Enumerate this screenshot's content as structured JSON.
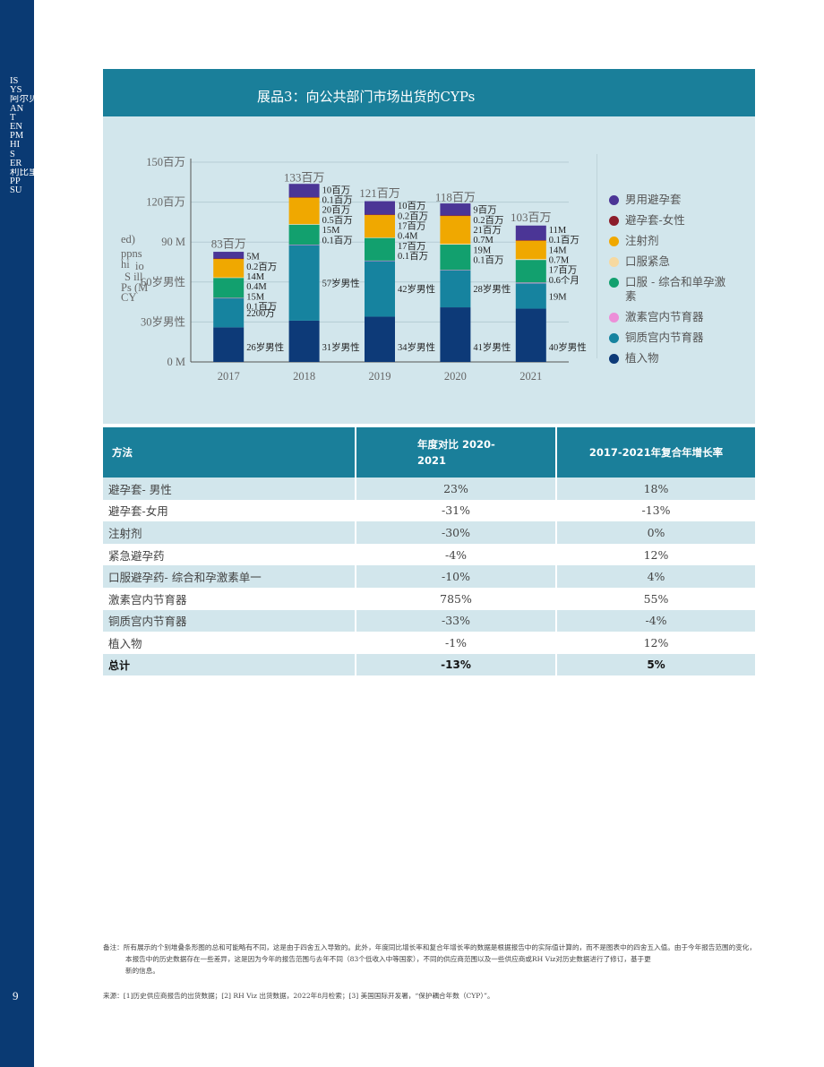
{
  "sidebar": {
    "lines": [
      "IS",
      "YS",
      "阿尔贝",
      "AN",
      "T",
      "EN",
      "PM",
      "HI",
      "S",
      "ER",
      "利比里",
      "PP",
      "SU"
    ],
    "page_number": "9"
  },
  "exhibit": {
    "title": "展品3：向公共部门市场出货的CYPs",
    "y_axis_label_fragments": [
      "ed)",
      "ppns",
      "hi",
      "io",
      "S ill",
      "Ps (M",
      "CY"
    ]
  },
  "chart_data": {
    "type": "bar",
    "stacked": true,
    "categories": [
      "2017",
      "2018",
      "2019",
      "2020",
      "2021"
    ],
    "ylim": [
      0,
      150
    ],
    "yticks": [
      {
        "value": 150,
        "label": "150百万"
      },
      {
        "value": 120,
        "label": "120百万"
      },
      {
        "value": 90,
        "label": "90 M"
      },
      {
        "value": 60,
        "label": "60岁男性"
      },
      {
        "value": 30,
        "label": "30岁男性"
      },
      {
        "value": 0,
        "label": "0 M"
      }
    ],
    "totals": [
      {
        "value": 83,
        "label": "83百万"
      },
      {
        "value": 133,
        "label": "133百万"
      },
      {
        "value": 121,
        "label": "121百万"
      },
      {
        "value": 118,
        "label": "118百万"
      },
      {
        "value": 103,
        "label": "103百万"
      }
    ],
    "series": [
      {
        "name": "植入物",
        "color": "#0d3a78",
        "values": [
          26,
          31,
          34,
          41,
          40
        ],
        "labels": [
          "26岁男性",
          "31岁男性",
          "34岁男性",
          "41岁男性",
          "40岁男性"
        ]
      },
      {
        "name": "铜质宫内节育器",
        "color": "#16839f",
        "values": [
          22,
          57,
          42,
          28,
          19
        ],
        "labels": [
          "2200万",
          "57岁男性",
          "42岁男性",
          "28岁男性",
          "19M"
        ]
      },
      {
        "name": "激素宫内节育器",
        "color": "#ec8fd8",
        "values": [
          0.1,
          0.1,
          0.1,
          0.1,
          0.6
        ],
        "labels": [
          "0.1百万",
          "0.1百万",
          "0.1百万",
          "0.1百万",
          "0.6个月"
        ]
      },
      {
        "name": "口服 - 综合和单孕激素",
        "color": "#12a06e",
        "values": [
          15,
          15,
          17,
          19,
          17
        ],
        "labels": [
          "15M",
          "15M",
          "17百万",
          "19M",
          "17百万"
        ]
      },
      {
        "name": "口服紧急",
        "color": "#f6d9a0",
        "values": [
          0.4,
          0.5,
          0.4,
          0.7,
          0.7
        ],
        "labels": [
          "0.4M",
          "0.5百万",
          "0.4M",
          "0.7M",
          "0.7M"
        ]
      },
      {
        "name": "注射剂",
        "color": "#f0a800",
        "values": [
          14,
          20,
          17,
          21,
          14
        ],
        "labels": [
          "14M",
          "20百万",
          "17百万",
          "21百万",
          "14M"
        ]
      },
      {
        "name": "避孕套-女性",
        "color": "#8c1c2a",
        "values": [
          0.2,
          0.1,
          0.2,
          0.2,
          0.1
        ],
        "labels": [
          "0.2百万",
          "0.1百万",
          "0.2百万",
          "0.2百万",
          "0.1百万"
        ]
      },
      {
        "name": "男用避孕套",
        "color": "#4b3596",
        "values": [
          5,
          10,
          10,
          9,
          11
        ],
        "labels": [
          "5M",
          "10百万",
          "10百万",
          "9百万",
          "11M"
        ]
      }
    ]
  },
  "legend": {
    "items": [
      {
        "label": "男用避孕套",
        "color": "#4b3596"
      },
      {
        "label": "避孕套-女性",
        "color": "#8c1c2a"
      },
      {
        "label": "注射剂",
        "color": "#f0a800"
      },
      {
        "label": "口服紧急",
        "color": "#f6d9a0"
      },
      {
        "label": "口服 - 综合和单孕激素",
        "color": "#12a06e"
      },
      {
        "label": "激素宫内节育器",
        "color": "#ec8fd8"
      },
      {
        "label": "铜质宫内节育器",
        "color": "#16839f"
      },
      {
        "label": "植入物",
        "color": "#0d3a78"
      }
    ]
  },
  "table": {
    "headers": {
      "method": "方法",
      "yoy_line1": "年度对比 2020-",
      "yoy_line2": "2021",
      "cagr": "2017-2021年复合年增长率"
    },
    "rows": [
      {
        "method": "避孕套- 男性",
        "yoy": "23%",
        "cagr": "18%"
      },
      {
        "method": "避孕套-女用",
        "yoy": "-31%",
        "cagr": "-13%"
      },
      {
        "method": "注射剂",
        "yoy": "-30%",
        "cagr": "0%"
      },
      {
        "method": "紧急避孕药",
        "yoy": "-4%",
        "cagr": "12%"
      },
      {
        "method": "口服避孕药- 综合和孕激素单一",
        "yoy": "-10%",
        "cagr": "4%"
      },
      {
        "method": "激素宫内节育器",
        "yoy": "785%",
        "cagr": "55%"
      },
      {
        "method": "铜质宫内节育器",
        "yoy": "-33%",
        "cagr": "-4%"
      },
      {
        "method": "植入物",
        "yoy": "-1%",
        "cagr": "12%"
      }
    ],
    "total": {
      "method": "总计",
      "yoy": "-13%",
      "cagr": "5%"
    }
  },
  "notes": {
    "line1": "备注：所有展示的个别堆叠条形图的总和可能略有不同，这是由于四舍五入导致的。此外，年度同比增长率和复合年增长率的数据是根据报告中的实际值计算的，而不是图表中的四舍五入值。由于今年报告范围的变化，",
    "line2": "本报告中的历史数据存在一些差异，这是因为今年的报告范围与去年不同（83个低收入中等国家），不同的供应商范围以及一些供应商或RH Viz对历史数据进行了修订，基于更",
    "line3": "新的信息。",
    "source": "来源：[1]历史供应商报告的出货数据；[2] RH Viz 出货数据，2022年8月检索；[3] 美国国际开发署，“保护耦合年数（CYP）”。"
  }
}
